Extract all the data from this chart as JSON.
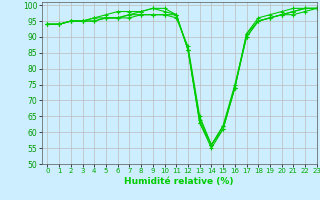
{
  "title": "",
  "xlabel": "Humidité relative (%)",
  "ylabel": "",
  "background_color": "#cceeff",
  "grid_color": "#bbbbbb",
  "line_color": "#00cc00",
  "marker": "+",
  "xlim": [
    -0.5,
    23
  ],
  "ylim": [
    50,
    101
  ],
  "yticks": [
    50,
    55,
    60,
    65,
    70,
    75,
    80,
    85,
    90,
    95,
    100
  ],
  "xticks": [
    0,
    1,
    2,
    3,
    4,
    5,
    6,
    7,
    8,
    9,
    10,
    11,
    12,
    13,
    14,
    15,
    16,
    17,
    18,
    19,
    20,
    21,
    22,
    23
  ],
  "series": [
    [
      94,
      94,
      95,
      95,
      95,
      96,
      96,
      96,
      97,
      97,
      97,
      96,
      87,
      65,
      56,
      62,
      74,
      90,
      95,
      96,
      97,
      98,
      99,
      99
    ],
    [
      94,
      94,
      95,
      95,
      95,
      96,
      96,
      97,
      98,
      99,
      98,
      97,
      86,
      63,
      56,
      61,
      74,
      91,
      96,
      97,
      98,
      99,
      99,
      99
    ],
    [
      94,
      94,
      95,
      95,
      96,
      97,
      98,
      98,
      98,
      99,
      99,
      97,
      86,
      63,
      55,
      61,
      74,
      91,
      95,
      96,
      97,
      98,
      99,
      99
    ],
    [
      94,
      94,
      95,
      95,
      96,
      96,
      96,
      97,
      97,
      97,
      97,
      97,
      86,
      64,
      56,
      62,
      75,
      90,
      95,
      96,
      97,
      97,
      98,
      99
    ]
  ]
}
